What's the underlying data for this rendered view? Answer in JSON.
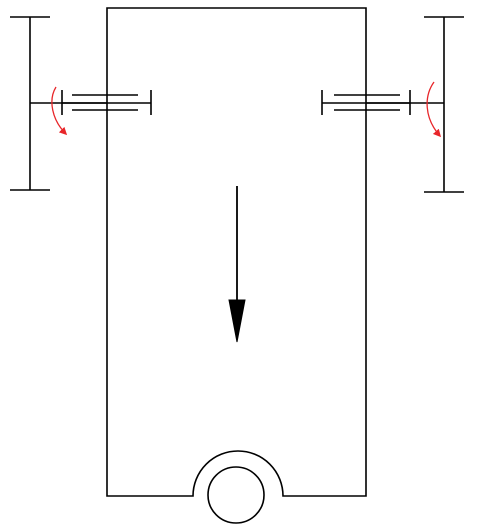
{
  "diagram": {
    "stroke_color": "#000000",
    "rotation_arrow_color": "#e8262a",
    "arrow_fill": "#000000",
    "icons": {
      "left_rotation": "curved-arrow-icon",
      "right_rotation": "curved-arrow-icon",
      "direction": "down-arrow-icon"
    }
  }
}
